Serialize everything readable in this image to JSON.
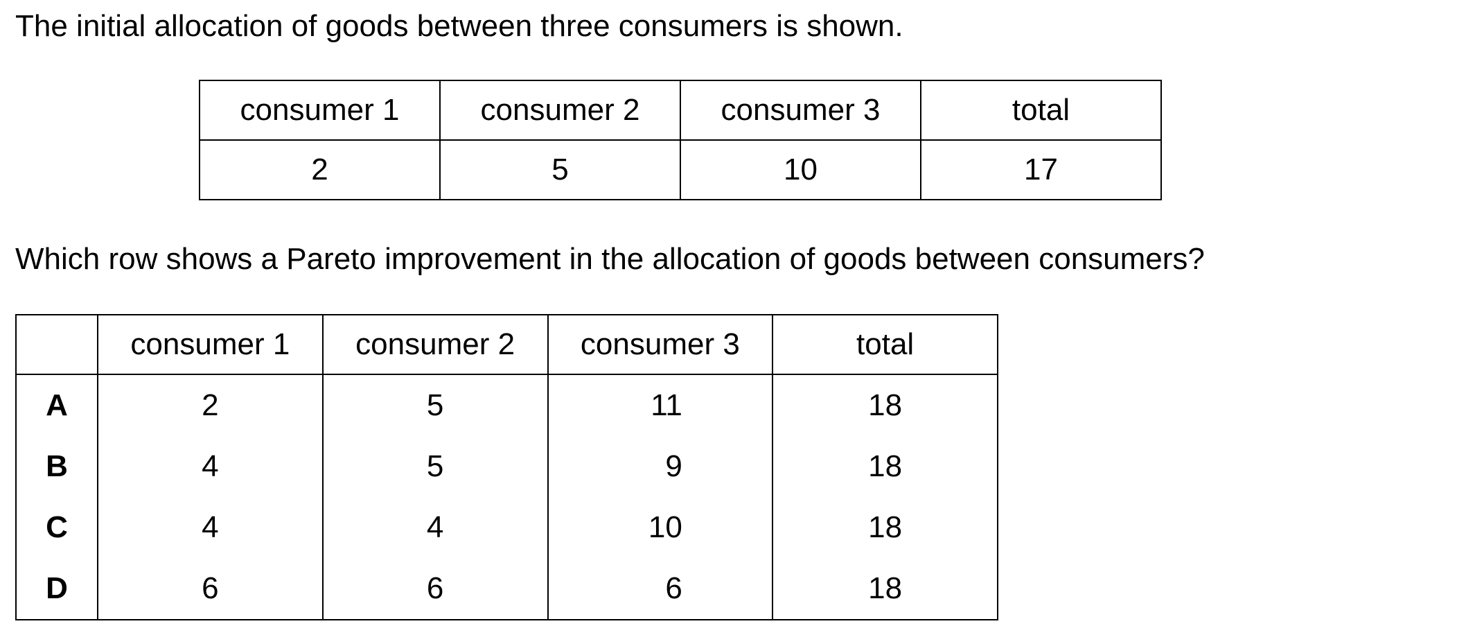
{
  "intro_text": "The initial allocation of goods between three consumers is shown.",
  "initial_table": {
    "headers": [
      "consumer 1",
      "consumer 2",
      "consumer 3",
      "total"
    ],
    "values": [
      "2",
      "5",
      "10",
      "17"
    ]
  },
  "question_text": "Which row shows a Pareto improvement in the allocation of goods between consumers?",
  "options_table": {
    "headers": [
      "",
      "consumer 1",
      "consumer 2",
      "consumer 3",
      "total"
    ],
    "rows": [
      {
        "label": "A",
        "c1": "2",
        "c2": "5",
        "c3": "11",
        "total": "18"
      },
      {
        "label": "B",
        "c1": "4",
        "c2": "5",
        "c3": "9",
        "total": "18"
      },
      {
        "label": "C",
        "c1": "4",
        "c2": "4",
        "c3": "10",
        "total": "18"
      },
      {
        "label": "D",
        "c1": "6",
        "c2": "6",
        "c3": "6",
        "total": "18"
      }
    ]
  }
}
